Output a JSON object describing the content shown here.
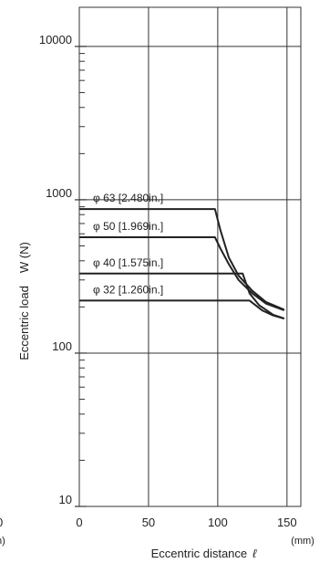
{
  "chart_data": {
    "type": "line",
    "x_axis": {
      "label": "Eccentric distance",
      "symbol": "ℓ",
      "unit": "(mm)",
      "range": [
        0,
        160
      ],
      "ticks": [
        0,
        50,
        100,
        150
      ],
      "tick_labels": [
        "0",
        "50",
        "100",
        "150"
      ]
    },
    "y_axis": {
      "label": "Eccentric load",
      "symbol": "W (N)",
      "scale": "log",
      "range": [
        10,
        18000
      ],
      "ticks": [
        10,
        100,
        1000,
        10000
      ],
      "tick_labels": [
        "10",
        "100",
        "1000",
        "10000"
      ]
    },
    "grid": true,
    "left_edge_fragments": [
      "0",
      "n)"
    ],
    "series": [
      {
        "name": "φ 63 [2.480in.]",
        "points": [
          [
            0,
            870
          ],
          [
            98,
            870
          ],
          [
            102,
            630
          ],
          [
            108,
            420
          ],
          [
            115,
            320
          ],
          [
            125,
            255
          ],
          [
            135,
            215
          ],
          [
            148,
            192
          ]
        ]
      },
      {
        "name": "φ 50 [1.969in.]",
        "points": [
          [
            0,
            570
          ],
          [
            98,
            570
          ],
          [
            102,
            480
          ],
          [
            108,
            380
          ],
          [
            115,
            300
          ],
          [
            125,
            245
          ],
          [
            135,
            210
          ],
          [
            148,
            190
          ]
        ]
      },
      {
        "name": "φ 40 [1.575in.]",
        "points": [
          [
            0,
            330
          ],
          [
            118,
            330
          ],
          [
            123,
            245
          ],
          [
            130,
            205
          ],
          [
            140,
            178
          ],
          [
            148,
            168
          ]
        ]
      },
      {
        "name": "φ 32 [1.260in.]",
        "points": [
          [
            0,
            220
          ],
          [
            123,
            220
          ],
          [
            132,
            190
          ],
          [
            140,
            176
          ],
          [
            148,
            168
          ]
        ]
      }
    ]
  }
}
